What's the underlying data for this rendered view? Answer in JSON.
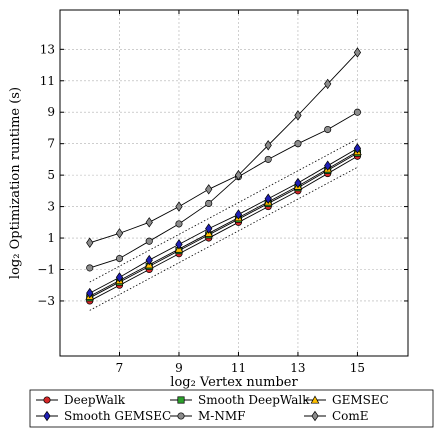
{
  "chart_data": {
    "type": "line",
    "title": "",
    "xlabel": "log₂ Vertex number",
    "ylabel": "log₂ Optimization runtime (s)",
    "xlim": [
      5,
      16.7
    ],
    "ylim": [
      -6.5,
      15.5
    ],
    "xticks": [
      7,
      9,
      11,
      13,
      15
    ],
    "yticks": [
      -3,
      -1,
      1,
      3,
      5,
      7,
      9,
      11,
      13
    ],
    "grid": true,
    "legend_position": "bottom-outside",
    "x": [
      6,
      7,
      8,
      9,
      10,
      11,
      12,
      13,
      14,
      15
    ],
    "series": [
      {
        "name": "DeepWalk",
        "marker": "circle",
        "color": "#d62728",
        "values": [
          -3.0,
          -2.0,
          -1.0,
          0.0,
          1.0,
          2.0,
          3.0,
          4.0,
          5.1,
          6.2
        ]
      },
      {
        "name": "Smooth DeepWalk",
        "marker": "square",
        "color": "#2ca02c",
        "values": [
          -2.8,
          -1.8,
          -0.8,
          0.2,
          1.2,
          2.2,
          3.2,
          4.2,
          5.3,
          6.4
        ]
      },
      {
        "name": "GEMSEC",
        "marker": "triangle",
        "color": "#ffc000",
        "values": [
          -2.7,
          -1.7,
          -0.7,
          0.3,
          1.3,
          2.3,
          3.3,
          4.3,
          5.4,
          6.5
        ]
      },
      {
        "name": "Smooth GEMSEC",
        "marker": "diamond",
        "color": "#1f1fb4",
        "values": [
          -2.5,
          -1.5,
          -0.4,
          0.6,
          1.6,
          2.5,
          3.5,
          4.5,
          5.6,
          6.7
        ]
      },
      {
        "name": "M-NMF",
        "marker": "circle",
        "color": "#8c8c8c",
        "values": [
          -0.9,
          -0.3,
          0.8,
          1.9,
          3.2,
          4.9,
          6.0,
          7.0,
          7.9,
          9.0
        ]
      },
      {
        "name": "ComE",
        "marker": "diamond",
        "color": "#8c8c8c",
        "values": [
          0.7,
          1.3,
          2.0,
          3.0,
          4.1,
          5.0,
          6.9,
          8.8,
          10.8,
          12.8
        ]
      }
    ],
    "bounds": {
      "upper": [
        [
          6,
          -1.8
        ],
        [
          15,
          7.3
        ]
      ],
      "lower": [
        [
          6,
          -3.6
        ],
        [
          15,
          5.5
        ]
      ]
    }
  }
}
